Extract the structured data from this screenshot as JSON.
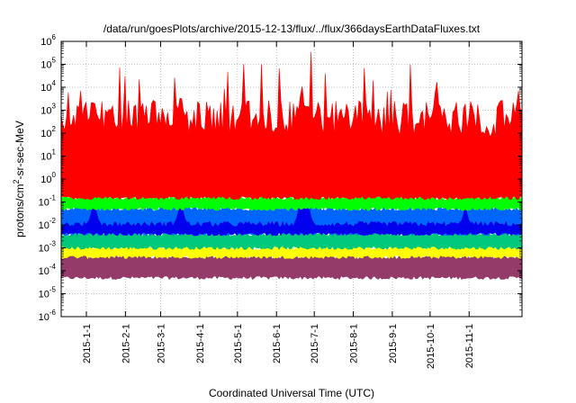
{
  "chart_data": {
    "type": "area",
    "title": "/data/run/goesPlots/archive/2015-12-13/flux/../flux/366daysEarthDataFluxes.txt",
    "xlabel": "Coordinated Universal Time (UTC)",
    "ylabel_base": "protons/cm",
    "ylabel_sup": "2",
    "ylabel_tail": "-sr-sec-MeV",
    "y_scale": "log",
    "ylim": [
      1e-06,
      1000000.0
    ],
    "y_ticks": [
      {
        "value": -6,
        "base": "10",
        "exp": "-6"
      },
      {
        "value": -5,
        "base": "10",
        "exp": "-5"
      },
      {
        "value": -4,
        "base": "10",
        "exp": "-4"
      },
      {
        "value": -3,
        "base": "10",
        "exp": "-3"
      },
      {
        "value": -2,
        "base": "10",
        "exp": "-2"
      },
      {
        "value": -1,
        "base": "10",
        "exp": "-1"
      },
      {
        "value": 0,
        "base": "10",
        "exp": "0"
      },
      {
        "value": 1,
        "base": "10",
        "exp": "1"
      },
      {
        "value": 2,
        "base": "10",
        "exp": "2"
      },
      {
        "value": 3,
        "base": "10",
        "exp": "3"
      },
      {
        "value": 4,
        "base": "10",
        "exp": "4"
      },
      {
        "value": 5,
        "base": "10",
        "exp": "5"
      },
      {
        "value": 6,
        "base": "10",
        "exp": "6"
      }
    ],
    "x_range": [
      "2014-12-12",
      "2015-12-13"
    ],
    "x_ticks": [
      {
        "date": "2015-01-01",
        "label": "2015-1-1"
      },
      {
        "date": "2015-02-01",
        "label": "2015-2-1"
      },
      {
        "date": "2015-03-01",
        "label": "2015-3-1"
      },
      {
        "date": "2015-04-01",
        "label": "2015-4-1"
      },
      {
        "date": "2015-05-01",
        "label": "2015-5-1"
      },
      {
        "date": "2015-06-01",
        "label": "2015-6-1"
      },
      {
        "date": "2015-07-01",
        "label": "2015-7-1"
      },
      {
        "date": "2015-08-01",
        "label": "2015-8-1"
      },
      {
        "date": "2015-09-01",
        "label": "2015-9-1"
      },
      {
        "date": "2015-10-01",
        "label": "2015-10-1"
      },
      {
        "date": "2015-11-01",
        "label": "2015-11-1"
      }
    ],
    "grid": true,
    "legend": "none",
    "series": [
      {
        "color": "#943b69",
        "baseline": 5e-05,
        "top_level": 0.0004,
        "events": []
      },
      {
        "color": "#ffff00",
        "baseline": 0.0004,
        "top_level": 0.001,
        "events": [
          {
            "date": "2015-06-22",
            "peak": 0.003
          },
          {
            "date": "2015-10-29",
            "peak": 0.004
          }
        ]
      },
      {
        "color": "#00c87a",
        "baseline": 0.001,
        "top_level": 0.004,
        "events": [
          {
            "date": "2015-06-22",
            "peak": 0.02
          },
          {
            "date": "2015-10-29",
            "peak": 0.01
          }
        ]
      },
      {
        "color": "#0066ff",
        "baseline": 0.004,
        "top_level": 0.05,
        "events": [
          {
            "date": "2015-06-21",
            "peak": 1
          },
          {
            "date": "2015-01-07",
            "peak": 0.3
          },
          {
            "date": "2015-03-17",
            "peak": 0.5
          }
        ]
      },
      {
        "color": "#0000ee",
        "baseline": 0.004,
        "top_level": 0.01,
        "events": [
          {
            "date": "2015-06-21",
            "peak": 5
          },
          {
            "date": "2015-06-25",
            "peak": 2
          },
          {
            "date": "2015-01-07",
            "peak": 0.5
          },
          {
            "date": "2015-03-17",
            "peak": 0.5
          },
          {
            "date": "2015-10-29",
            "peak": 0.1
          }
        ]
      },
      {
        "color": "#00ff00",
        "baseline": 0.05,
        "top_level": 0.15,
        "events": [
          {
            "date": "2015-06-21",
            "peak": 30
          },
          {
            "date": "2015-01-07",
            "peak": 1
          },
          {
            "date": "2015-03-17",
            "peak": 10
          },
          {
            "date": "2015-04-20",
            "peak": 0.5
          },
          {
            "date": "2015-10-29",
            "peak": 0.5
          }
        ]
      },
      {
        "color": "#ff0000",
        "baseline": 0.15,
        "top_level": 300,
        "events": [
          {
            "date": "2015-06-21",
            "peak": 30000
          },
          {
            "date": "2015-06-25",
            "peak": 3000
          },
          {
            "date": "2015-03-17",
            "peak": 10000
          },
          {
            "date": "2015-10-06",
            "peak": 50000
          },
          {
            "date": "2015-01-07",
            "peak": 5000
          },
          {
            "date": "2015-05-05",
            "peak": 3000
          },
          {
            "date": "2015-12-10",
            "peak": 10000
          }
        ]
      }
    ]
  }
}
